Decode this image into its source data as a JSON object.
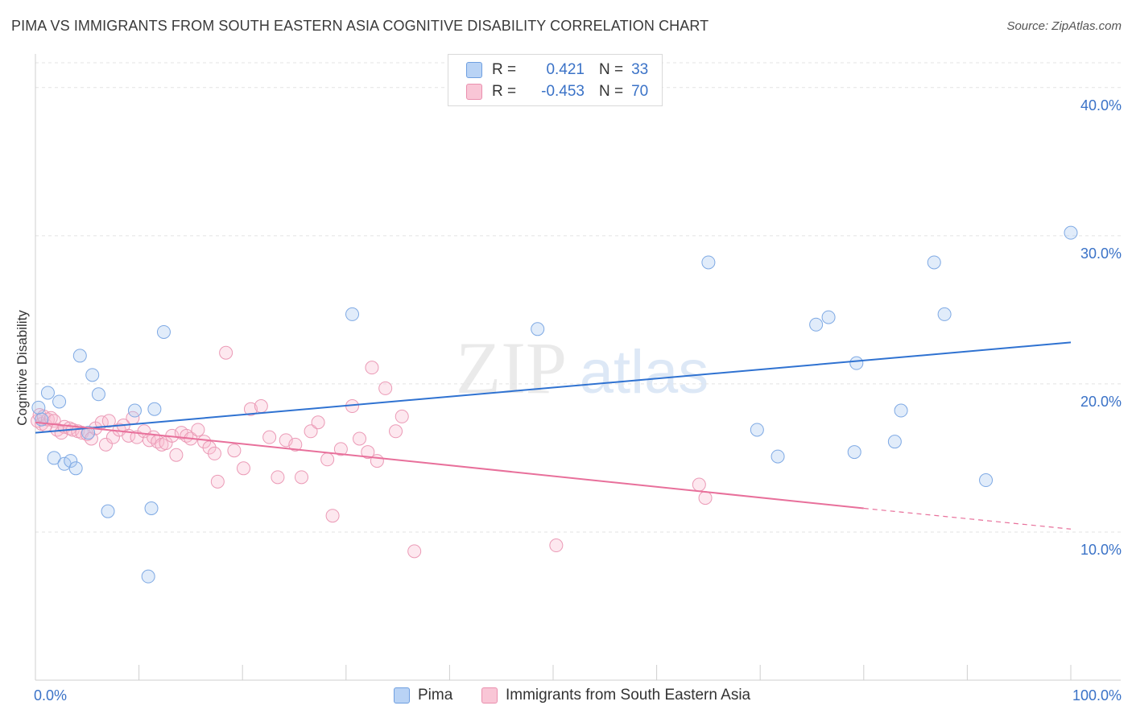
{
  "title": "PIMA VS IMMIGRANTS FROM SOUTH EASTERN ASIA COGNITIVE DISABILITY CORRELATION CHART",
  "source": "Source: ZipAtlas.com",
  "watermark": "ZIPatlas",
  "legend_stats": [
    {
      "r_label": "R =",
      "r_value": "0.421",
      "n_label": "N =",
      "n_value": "33",
      "fill": "#b9d3f5",
      "stroke": "#6f9fe0"
    },
    {
      "r_label": "R =",
      "r_value": "-0.453",
      "n_label": "N =",
      "n_value": "70",
      "fill": "#f9c6d6",
      "stroke": "#ea8fae"
    }
  ],
  "bottom_legend": [
    "Pima",
    "Immigrants from South Eastern Asia"
  ],
  "colors": {
    "pima_point_fill": "rgba(168,200,240,0.35)",
    "pima_point_stroke": "#7ea9e4",
    "pima_line": "#2f72d1",
    "imm_point_fill": "rgba(248,190,210,0.35)",
    "imm_point_stroke": "#eb9ab6",
    "imm_line": "#e8709b",
    "tick_label": "#3a72c7",
    "grid": "#e3e3e3"
  },
  "chart_data": {
    "type": "scatter",
    "title": "PIMA VS IMMIGRANTS FROM SOUTH EASTERN ASIA COGNITIVE DISABILITY CORRELATION CHART",
    "xlabel": "",
    "ylabel": "Cognitive Disability",
    "xlim": [
      0,
      100
    ],
    "ylim": [
      0,
      42
    ],
    "x_tick_labels": [
      "0.0%",
      "100.0%"
    ],
    "y_ticks": [
      10,
      20,
      30,
      40
    ],
    "y_tick_labels": [
      "10.0%",
      "20.0%",
      "30.0%",
      "40.0%"
    ],
    "grid": true,
    "legend_position": "top-center",
    "series": [
      {
        "name": "Pima",
        "points": [
          [
            0.3,
            18.4
          ],
          [
            0.6,
            17.6
          ],
          [
            1.2,
            19.4
          ],
          [
            1.8,
            15.0
          ],
          [
            2.3,
            18.8
          ],
          [
            2.8,
            14.6
          ],
          [
            3.4,
            14.8
          ],
          [
            3.9,
            14.3
          ],
          [
            4.3,
            21.9
          ],
          [
            5.5,
            20.6
          ],
          [
            5.1,
            16.7
          ],
          [
            6.1,
            19.3
          ],
          [
            7.0,
            11.4
          ],
          [
            9.6,
            18.2
          ],
          [
            10.9,
            7.0
          ],
          [
            11.2,
            11.6
          ],
          [
            11.5,
            18.3
          ],
          [
            12.4,
            23.5
          ],
          [
            30.6,
            24.7
          ],
          [
            48.5,
            23.7
          ],
          [
            65.0,
            28.2
          ],
          [
            69.7,
            16.9
          ],
          [
            71.7,
            15.1
          ],
          [
            75.4,
            24.0
          ],
          [
            76.6,
            24.5
          ],
          [
            79.1,
            15.4
          ],
          [
            79.3,
            21.4
          ],
          [
            83.0,
            16.1
          ],
          [
            83.6,
            18.2
          ],
          [
            86.8,
            28.2
          ],
          [
            87.8,
            24.7
          ],
          [
            91.8,
            13.5
          ],
          [
            100.0,
            30.2
          ]
        ],
        "trend": {
          "x": [
            0,
            100
          ],
          "y": [
            16.7,
            22.8
          ]
        }
      },
      {
        "name": "Immigrants from South Eastern Asia",
        "points": [
          [
            0.2,
            17.5
          ],
          [
            0.4,
            17.9
          ],
          [
            0.6,
            17.3
          ],
          [
            0.8,
            17.8
          ],
          [
            1.0,
            17.2
          ],
          [
            1.2,
            17.6
          ],
          [
            1.5,
            17.7
          ],
          [
            1.8,
            17.5
          ],
          [
            2.1,
            16.9
          ],
          [
            2.5,
            16.7
          ],
          [
            2.8,
            17.1
          ],
          [
            3.3,
            17.0
          ],
          [
            3.6,
            16.9
          ],
          [
            4.1,
            16.8
          ],
          [
            4.5,
            16.7
          ],
          [
            5.0,
            16.6
          ],
          [
            5.4,
            16.3
          ],
          [
            5.8,
            17.0
          ],
          [
            6.4,
            17.4
          ],
          [
            7.1,
            17.5
          ],
          [
            6.8,
            15.9
          ],
          [
            7.5,
            16.4
          ],
          [
            8.1,
            16.9
          ],
          [
            8.5,
            17.2
          ],
          [
            9.0,
            16.5
          ],
          [
            9.4,
            17.7
          ],
          [
            9.8,
            16.4
          ],
          [
            10.5,
            16.8
          ],
          [
            11.0,
            16.2
          ],
          [
            11.4,
            16.4
          ],
          [
            11.8,
            16.1
          ],
          [
            12.2,
            15.9
          ],
          [
            12.6,
            16.0
          ],
          [
            13.2,
            16.5
          ],
          [
            13.6,
            15.2
          ],
          [
            14.1,
            16.7
          ],
          [
            14.6,
            16.5
          ],
          [
            15.0,
            16.3
          ],
          [
            15.7,
            16.9
          ],
          [
            16.3,
            16.1
          ],
          [
            16.8,
            15.7
          ],
          [
            17.3,
            15.3
          ],
          [
            17.6,
            13.4
          ],
          [
            18.4,
            22.1
          ],
          [
            19.2,
            15.5
          ],
          [
            20.1,
            14.3
          ],
          [
            20.8,
            18.3
          ],
          [
            21.8,
            18.5
          ],
          [
            22.6,
            16.4
          ],
          [
            23.4,
            13.7
          ],
          [
            24.2,
            16.2
          ],
          [
            25.1,
            15.9
          ],
          [
            25.7,
            13.7
          ],
          [
            26.6,
            16.8
          ],
          [
            27.3,
            17.4
          ],
          [
            28.2,
            14.9
          ],
          [
            28.7,
            11.1
          ],
          [
            29.5,
            15.6
          ],
          [
            30.6,
            18.5
          ],
          [
            31.3,
            16.3
          ],
          [
            32.1,
            15.4
          ],
          [
            32.5,
            21.1
          ],
          [
            33.0,
            14.8
          ],
          [
            33.8,
            19.7
          ],
          [
            34.8,
            16.8
          ],
          [
            35.4,
            17.8
          ],
          [
            36.6,
            8.7
          ],
          [
            50.3,
            9.1
          ],
          [
            64.1,
            13.2
          ],
          [
            64.7,
            12.3
          ]
        ],
        "trend": {
          "x": [
            0,
            80
          ],
          "y": [
            17.4,
            11.6
          ]
        },
        "trend_dashed": {
          "x": [
            80,
            100
          ],
          "y": [
            11.6,
            10.2
          ]
        }
      }
    ]
  }
}
